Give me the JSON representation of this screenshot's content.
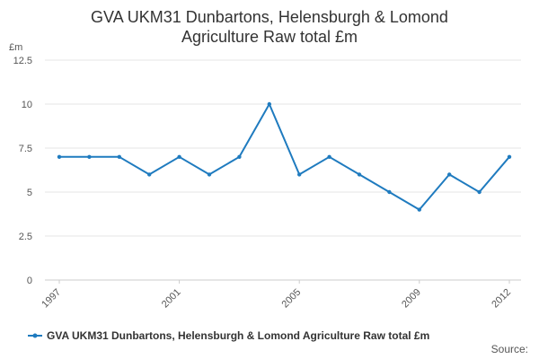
{
  "chart_data": {
    "type": "line",
    "title_line1": "GVA UKM31 Dunbartons, Helensburgh & Lomond",
    "title_line2": "Agriculture Raw total £m",
    "ylabel": "£m",
    "xlabel": "",
    "x": [
      1997,
      1998,
      1999,
      2000,
      2001,
      2002,
      2003,
      2004,
      2005,
      2006,
      2007,
      2008,
      2009,
      2010,
      2011,
      2012
    ],
    "x_tick_labels": [
      "1997",
      "2001",
      "2005",
      "2009",
      "2012"
    ],
    "y_ticks": [
      0,
      2.5,
      5,
      7.5,
      10,
      12.5
    ],
    "y_tick_labels": [
      "0",
      "2.5",
      "5",
      "7.5",
      "10",
      "12.5"
    ],
    "ylim": [
      0,
      12.5
    ],
    "xlim": [
      1997,
      2012
    ],
    "grid": true,
    "legend_position": "bottom",
    "series": [
      {
        "name": "GVA UKM31 Dunbartons, Helensburgh & Lomond Agriculture Raw total £m",
        "color": "#1f7bbf",
        "values": [
          7,
          7,
          7,
          6,
          7,
          6,
          7,
          10,
          6,
          7,
          6,
          5,
          4,
          6,
          5,
          7
        ]
      }
    ]
  },
  "source_label": "Source:"
}
